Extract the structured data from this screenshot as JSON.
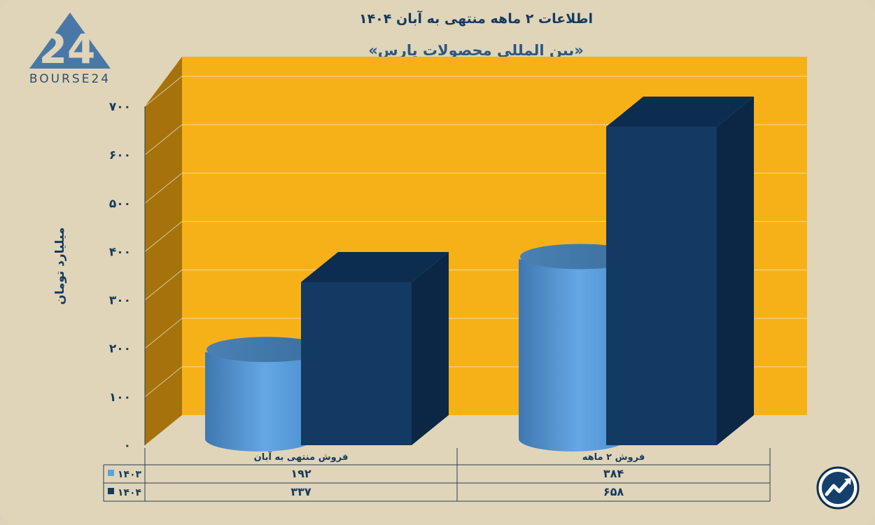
{
  "header": {
    "title": "اطلاعات ۲ ماهه منتهی به آبان ۱۴۰۴",
    "subtitle": "«بین المللی محصولات پارس»"
  },
  "logo": {
    "text": "BOURSE24",
    "mark": "24"
  },
  "icons": {
    "badge": "chart-trend-icon"
  },
  "colors": {
    "background": "#e0d5b9",
    "wall": "#f7b118",
    "side_wall": "#a5720c",
    "series_1403": "#5ba3e0",
    "series_1404": "#123a63"
  },
  "chart_data": {
    "type": "bar",
    "title": "اطلاعات ۲ ماهه منتهی به آبان ۱۴۰۴",
    "subtitle": "«بین المللی محصولات پارس»",
    "ylabel": "میلیارد تومان",
    "xlabel": "",
    "ylim": [
      0,
      700
    ],
    "yticks": [
      {
        "value": 0,
        "label": "۰"
      },
      {
        "value": 100,
        "label": "۱۰۰"
      },
      {
        "value": 200,
        "label": "۲۰۰"
      },
      {
        "value": 300,
        "label": "۳۰۰"
      },
      {
        "value": 400,
        "label": "۴۰۰"
      },
      {
        "value": 500,
        "label": "۵۰۰"
      },
      {
        "value": 600,
        "label": "۶۰۰"
      },
      {
        "value": 700,
        "label": "۷۰۰"
      }
    ],
    "grid": true,
    "legend": "data-table",
    "categories": [
      "فروش منتهی به آبان",
      "فروش ۲ ماهه"
    ],
    "series": [
      {
        "name": "۱۴۰۳",
        "shape": "cylinder",
        "values": [
          192,
          384
        ],
        "labels": [
          "۱۹۲",
          "۳۸۴"
        ]
      },
      {
        "name": "۱۴۰۴",
        "shape": "box",
        "values": [
          337,
          658
        ],
        "labels": [
          "۳۳۷",
          "۶۵۸"
        ]
      }
    ]
  }
}
